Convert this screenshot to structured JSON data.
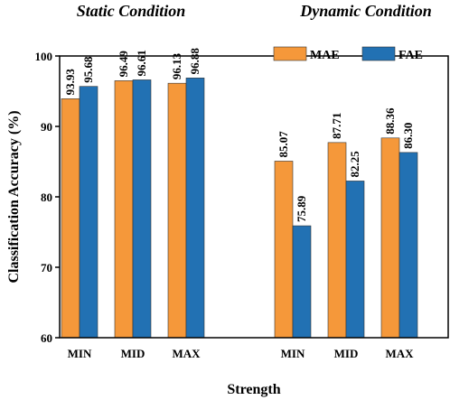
{
  "chart_data": {
    "type": "bar",
    "ylabel": "Classification Accuracy (%)",
    "xlabel": "Strength",
    "ylim": [
      60,
      100
    ],
    "yticks": [
      60,
      70,
      80,
      90,
      100
    ],
    "groups": [
      {
        "title": "Static Condition",
        "categories": [
          "MIN",
          "MID",
          "MAX"
        ],
        "series": [
          {
            "name": "MAE",
            "values": [
              93.93,
              96.49,
              96.13
            ],
            "labels": [
              "93.93",
              "96.49",
              "96.13"
            ]
          },
          {
            "name": "FAE",
            "values": [
              95.68,
              96.61,
              96.88
            ],
            "labels": [
              "95.68",
              "96.61",
              "96.88"
            ]
          }
        ]
      },
      {
        "title": "Dynamic Condition",
        "categories": [
          "MIN",
          "MID",
          "MAX"
        ],
        "series": [
          {
            "name": "MAE",
            "values": [
              85.07,
              87.71,
              88.36
            ],
            "labels": [
              "85.07",
              "87.71",
              "88.36"
            ]
          },
          {
            "name": "FAE",
            "values": [
              75.89,
              82.25,
              86.3
            ],
            "labels": [
              "75.89",
              "82.25",
              "86.30"
            ]
          }
        ]
      }
    ],
    "legend": {
      "placement": "top-right",
      "entries": [
        {
          "name": "MAE",
          "color": "#F5983A"
        },
        {
          "name": "FAE",
          "color": "#2271B3"
        }
      ]
    },
    "colors": {
      "MAE": "#F5983A",
      "FAE": "#2271B3"
    },
    "grid": false
  }
}
